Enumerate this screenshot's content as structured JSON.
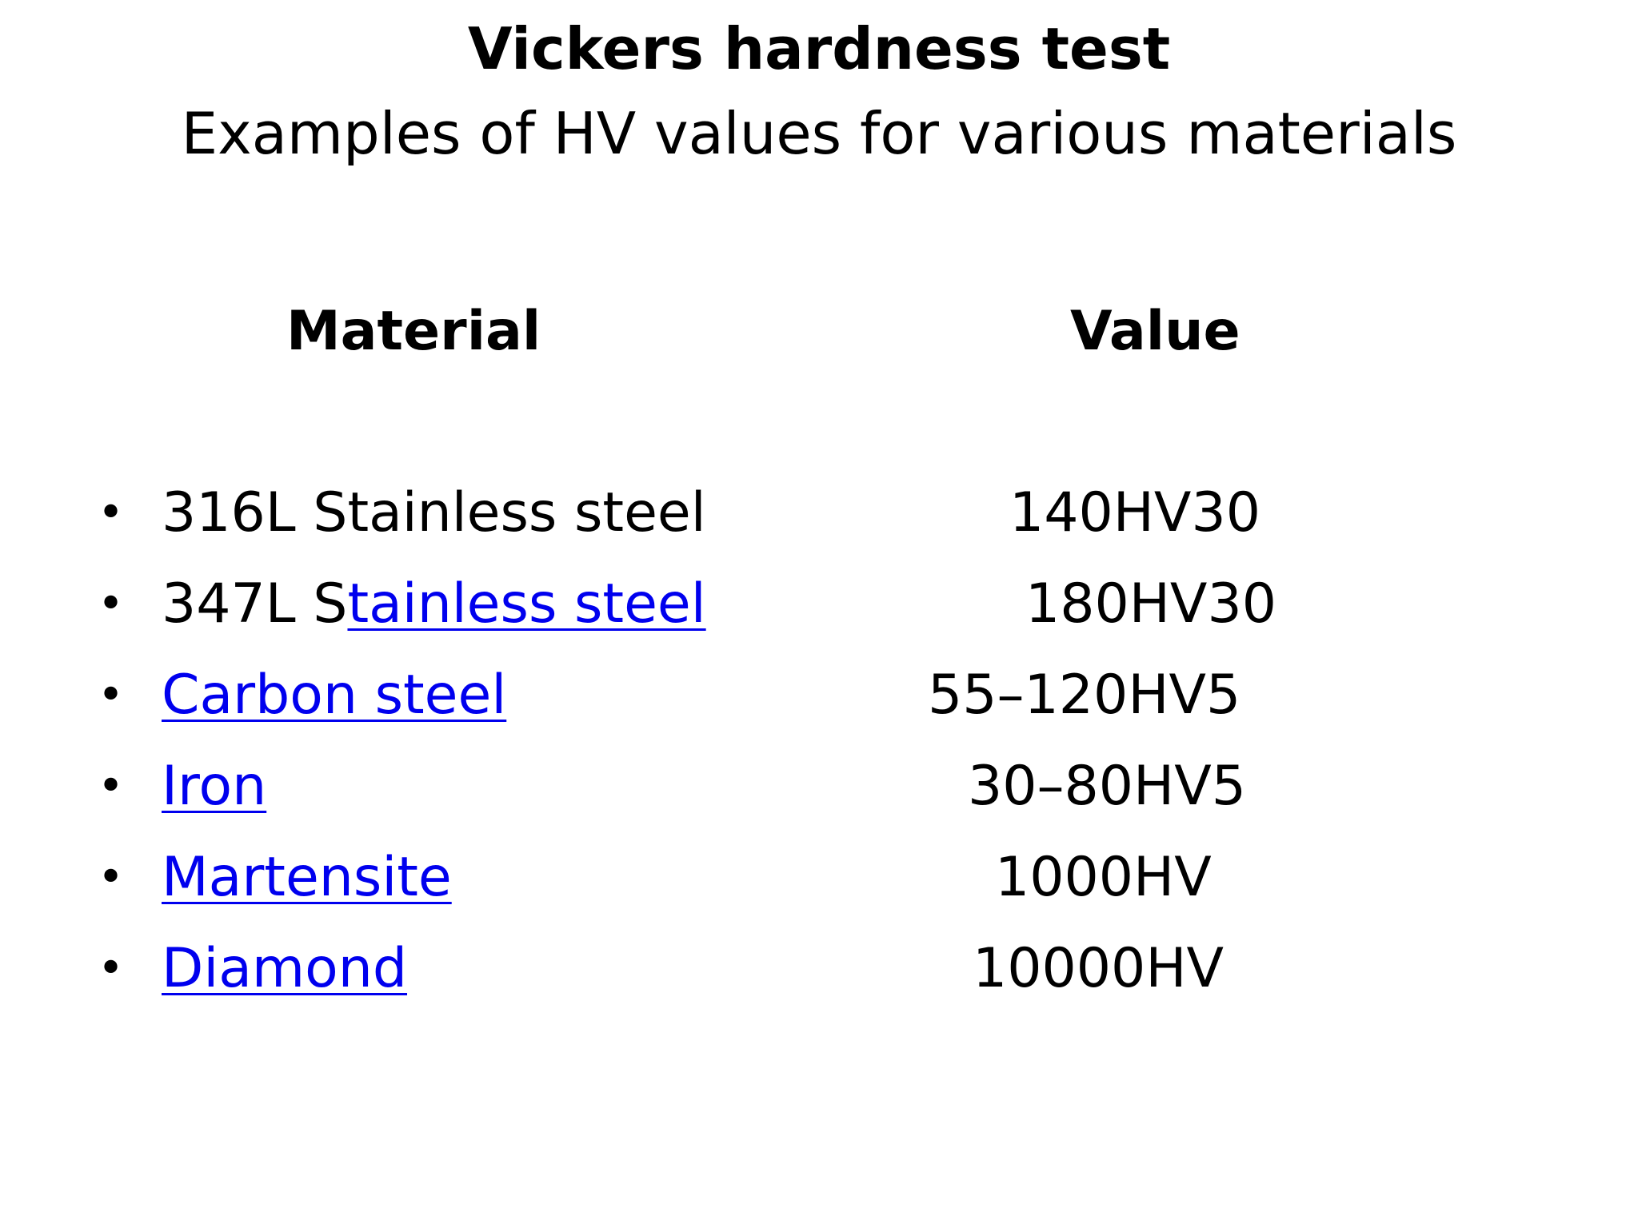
{
  "title": "Vickers hardness test",
  "subtitle": "Examples of HV values for various materials",
  "table": {
    "headers": {
      "material": "Material",
      "value": "Value"
    },
    "bullet": "•",
    "rows": [
      {
        "plain": "316L Stainless steel",
        "link": "",
        "value": "140HV30"
      },
      {
        "plain": "347L S",
        "link": "tainless steel",
        "value": "180HV30"
      },
      {
        "plain": "",
        "link": "Carbon steel",
        "value": "55–120HV5"
      },
      {
        "plain": "",
        "link": "Iron",
        "value": "30–80HV5"
      },
      {
        "plain": "",
        "link": "Martensite",
        "value": "1000HV"
      },
      {
        "plain": "",
        "link": "Diamond",
        "value": "10000HV"
      }
    ]
  },
  "colors": {
    "text": "#000000",
    "link": "#0000ee",
    "background": "#ffffff"
  }
}
